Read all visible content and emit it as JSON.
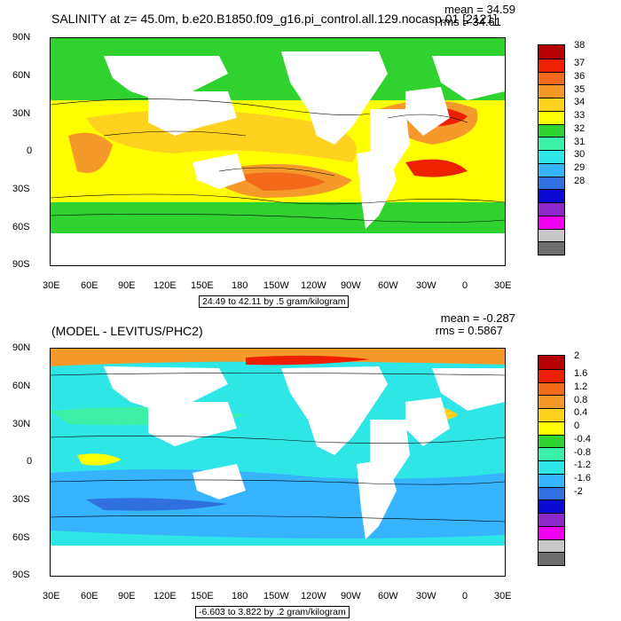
{
  "panel1": {
    "title": "SALINITY at z=  45.0m, b.e20.B1850.f09_g16.pi_control.all.129.nocasp.01 [2121]",
    "mean": "mean = 34.59",
    "rms": "rms = 34.61",
    "range_label": "24.49 to 42.11 by .5 gram/kilogram",
    "colorbar": {
      "ticks": [
        "38",
        "37",
        "36",
        "35",
        "34",
        "33",
        "32",
        "31",
        "30",
        "29",
        "28"
      ],
      "colors": [
        "#b40000",
        "#ee2000",
        "#f36a1a",
        "#f59a2a",
        "#ffd21f",
        "#ffff00",
        "#2fd22f",
        "#3cf0a8",
        "#2ee6e6",
        "#36b4ff",
        "#2f6fe0",
        "#0a0ad2",
        "#8c28c8",
        "#f000f0",
        "#c8c8c8",
        "#6e6e6e"
      ]
    }
  },
  "panel2": {
    "title": "(MODEL - LEVITUS/PHC2)",
    "mean": "mean = -0.287",
    "rms": "rms = 0.5867",
    "range_label": "-6.603 to 3.822 by .2 gram/kilogram",
    "colorbar": {
      "ticks": [
        "2",
        "1.6",
        "1.2",
        "0.8",
        "0.4",
        "0",
        "-0.4",
        "-0.8",
        "-1.2",
        "-1.6",
        "-2"
      ],
      "colors": [
        "#b40000",
        "#ee2000",
        "#f36a1a",
        "#f59a2a",
        "#ffd21f",
        "#ffff00",
        "#2fd22f",
        "#3cf0a8",
        "#2ee6e6",
        "#36b4ff",
        "#2f6fe0",
        "#0a0ad2",
        "#8c28c8",
        "#f000f0",
        "#c8c8c8",
        "#6e6e6e"
      ]
    }
  },
  "axes": {
    "lat_ticks": [
      "90N",
      "60N",
      "30N",
      "0",
      "30S",
      "60S",
      "90S"
    ],
    "lon_ticks": [
      "30E",
      "60E",
      "90E",
      "120E",
      "150E",
      "180",
      "150W",
      "120W",
      "90W",
      "60W",
      "30W",
      "0",
      "30E"
    ]
  }
}
